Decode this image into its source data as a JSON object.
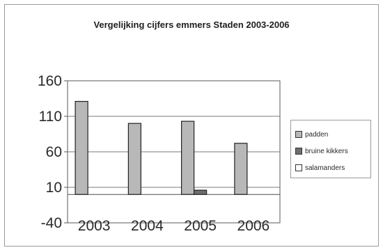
{
  "chart_data": {
    "type": "bar",
    "title": "Vergelijking cijfers emmers Staden 2003-2006",
    "categories": [
      "2003",
      "2004",
      "2005",
      "2006"
    ],
    "series": [
      {
        "name": "padden",
        "values": [
          131,
          100,
          103,
          72
        ],
        "color": "#b8b8b8"
      },
      {
        "name": "bruine kikkers",
        "values": [
          null,
          null,
          6,
          null
        ],
        "color": "#6e6e6e"
      },
      {
        "name": "salamanders",
        "values": [
          null,
          null,
          null,
          null
        ],
        "color": "#ffffff"
      }
    ],
    "ylim": [
      -40,
      160
    ],
    "yticks": [
      -40,
      10,
      60,
      110,
      160
    ],
    "grid": true,
    "legend_position": "right"
  }
}
